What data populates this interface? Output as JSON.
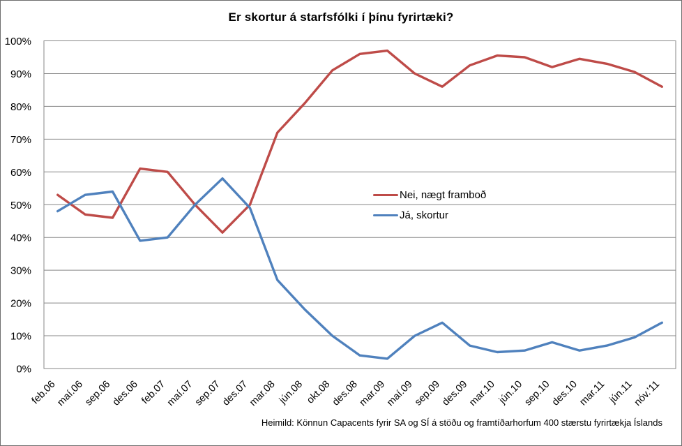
{
  "chart_data": {
    "type": "line",
    "title": "Er skortur á starfsfólki í þínu fyrirtæki?",
    "categories": [
      "feb.06",
      "maí.06",
      "sep.06",
      "des.06",
      "feb.07",
      "maí.07",
      "sep.07",
      "des.07",
      "mar.08",
      "jún.08",
      "okt.08",
      "des.08",
      "mar.09",
      "maí.09",
      "sep.09",
      "des.09",
      "mar.10",
      "jún.10",
      "sep.10",
      "des.10",
      "mar.11",
      "jún.11",
      "nóv.'11"
    ],
    "series": [
      {
        "name": "Nei, nægt framboð",
        "color": "#BE4B48",
        "values": [
          53,
          47,
          46,
          61,
          60,
          50,
          41.5,
          50,
          72,
          81,
          91,
          96,
          97,
          90,
          86,
          92.5,
          95.5,
          95,
          92,
          94.5,
          93,
          90.5,
          86
        ]
      },
      {
        "name": "Já, skortur",
        "color": "#4F81BD",
        "values": [
          48,
          53,
          54,
          39,
          40,
          50,
          58,
          49,
          27,
          18,
          10,
          4,
          3,
          10,
          14,
          7,
          5,
          5.5,
          8,
          5.5,
          7,
          9.5,
          14
        ]
      }
    ],
    "xlabel": "",
    "ylabel": "",
    "ylim": [
      0,
      100
    ],
    "ytick_labels": [
      "0%",
      "10%",
      "20%",
      "30%",
      "40%",
      "50%",
      "60%",
      "70%",
      "80%",
      "90%",
      "100%"
    ],
    "grid": true,
    "gridline_color": "#878787",
    "legend_position": "center-right",
    "annotation": "Heimild: Könnun Capacents fyrir SA og SÍ á stöðu og framtíðarhorfum 400 stærstu fyrirtækja Íslands"
  }
}
